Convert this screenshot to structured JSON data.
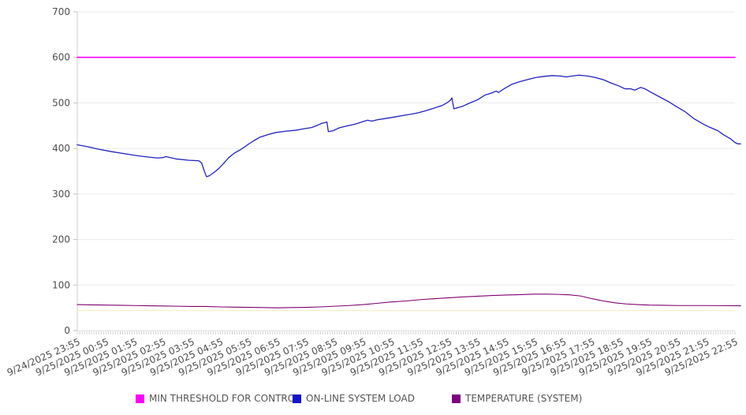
{
  "chart_data": {
    "type": "line",
    "title": "",
    "xlabel": "",
    "ylabel": "",
    "ylim": [
      0,
      700
    ],
    "x_hours_range": [
      0,
      23
    ],
    "grid": "horizontal-only",
    "legend_position": "bottom",
    "y_ticks": [
      0,
      100,
      200,
      300,
      400,
      500,
      600,
      700
    ],
    "x_tick_labels": [
      "9/24/2025 23:55",
      "9/25/2025 00:55",
      "9/25/2025 01:55",
      "9/25/2025 02:55",
      "9/25/2025 03:55",
      "9/25/2025 04:55",
      "9/25/2025 05:55",
      "9/25/2025 06:55",
      "9/25/2025 07:55",
      "9/25/2025 08:55",
      "9/25/2025 09:55",
      "9/25/2025 10:55",
      "9/25/2025 11:55",
      "9/25/2025 12:55",
      "9/25/2025 13:55",
      "9/25/2025 14:55",
      "9/25/2025 15:55",
      "9/25/2025 16:55",
      "9/25/2025 17:55",
      "9/25/2025 18:55",
      "9/25/2025 19:55",
      "9/25/2025 20:55",
      "9/25/2025 21:55",
      "9/25/2025 22:55"
    ],
    "x_minor_ticks_per_hour": 12,
    "series": [
      {
        "name": "unlabeled-faint-threshold",
        "color": "#f3f0c8",
        "width": 1.2,
        "in_legend": false,
        "points": [
          [
            0,
            44
          ],
          [
            23,
            44
          ]
        ]
      },
      {
        "name": "TEMPERATURE (SYSTEM)",
        "color": "#800070",
        "width": 1.1,
        "in_legend": true,
        "points": [
          [
            0,
            57
          ],
          [
            0.5,
            56.5
          ],
          [
            1,
            56
          ],
          [
            1.5,
            55.5
          ],
          [
            2,
            55
          ],
          [
            2.5,
            54.5
          ],
          [
            3,
            54
          ],
          [
            3.5,
            53.5
          ],
          [
            4,
            53
          ],
          [
            4.5,
            53
          ],
          [
            5,
            52
          ],
          [
            5.5,
            51.5
          ],
          [
            6,
            51
          ],
          [
            6.5,
            50.5
          ],
          [
            7,
            50
          ],
          [
            7.5,
            50.5
          ],
          [
            8,
            51
          ],
          [
            8.5,
            52
          ],
          [
            9,
            53.5
          ],
          [
            9.5,
            55
          ],
          [
            10,
            57
          ],
          [
            10.5,
            60
          ],
          [
            11,
            63
          ],
          [
            11.5,
            65
          ],
          [
            12,
            68
          ],
          [
            12.5,
            70
          ],
          [
            13,
            72
          ],
          [
            13.5,
            74
          ],
          [
            14,
            75.5
          ],
          [
            14.5,
            77
          ],
          [
            15,
            78
          ],
          [
            15.5,
            79
          ],
          [
            16,
            80
          ],
          [
            16.4,
            80
          ],
          [
            16.8,
            79.5
          ],
          [
            17.2,
            78.5
          ],
          [
            17.6,
            76
          ],
          [
            18,
            70
          ],
          [
            18.4,
            65
          ],
          [
            18.8,
            61
          ],
          [
            19.2,
            58.5
          ],
          [
            19.6,
            57
          ],
          [
            20,
            56
          ],
          [
            20.5,
            55.5
          ],
          [
            21,
            55
          ],
          [
            21.5,
            55
          ],
          [
            22,
            55
          ],
          [
            22.5,
            54.8
          ],
          [
            23.2,
            54.5
          ]
        ]
      },
      {
        "name": "ON-LINE SYSTEM LOAD",
        "color": "#2222c0",
        "width": 1.3,
        "in_legend": true,
        "points": [
          [
            0,
            408
          ],
          [
            0.35,
            404
          ],
          [
            0.7,
            399
          ],
          [
            1.2,
            393
          ],
          [
            1.6,
            389
          ],
          [
            2.1,
            384
          ],
          [
            2.5,
            381
          ],
          [
            2.8,
            379
          ],
          [
            3.0,
            380
          ],
          [
            3.1,
            382
          ],
          [
            3.45,
            377
          ],
          [
            3.9,
            374
          ],
          [
            4.25,
            373
          ],
          [
            4.35,
            368
          ],
          [
            4.45,
            349
          ],
          [
            4.52,
            338
          ],
          [
            4.62,
            340
          ],
          [
            4.8,
            348
          ],
          [
            4.95,
            356
          ],
          [
            5.1,
            366
          ],
          [
            5.3,
            380
          ],
          [
            5.5,
            390
          ],
          [
            5.7,
            397
          ],
          [
            5.85,
            403
          ],
          [
            6.0,
            410
          ],
          [
            6.2,
            418
          ],
          [
            6.4,
            425
          ],
          [
            6.7,
            431
          ],
          [
            6.95,
            435
          ],
          [
            7.3,
            438
          ],
          [
            7.65,
            440
          ],
          [
            7.9,
            443
          ],
          [
            8.2,
            446
          ],
          [
            8.4,
            451
          ],
          [
            8.55,
            455
          ],
          [
            8.68,
            457
          ],
          [
            8.73,
            458
          ],
          [
            8.78,
            437
          ],
          [
            8.95,
            439
          ],
          [
            9.15,
            445
          ],
          [
            9.4,
            449
          ],
          [
            9.7,
            453
          ],
          [
            9.95,
            458
          ],
          [
            10.15,
            462
          ],
          [
            10.3,
            460
          ],
          [
            10.5,
            463
          ],
          [
            10.8,
            466
          ],
          [
            11.1,
            469
          ],
          [
            11.35,
            472
          ],
          [
            11.65,
            475
          ],
          [
            11.9,
            478
          ],
          [
            12.2,
            483
          ],
          [
            12.45,
            488
          ],
          [
            12.75,
            494
          ],
          [
            12.95,
            501
          ],
          [
            13.05,
            506
          ],
          [
            13.1,
            511
          ],
          [
            13.17,
            487
          ],
          [
            13.45,
            492
          ],
          [
            13.7,
            499
          ],
          [
            14.0,
            507
          ],
          [
            14.25,
            517
          ],
          [
            14.5,
            522
          ],
          [
            14.65,
            526
          ],
          [
            14.73,
            523
          ],
          [
            14.95,
            532
          ],
          [
            15.2,
            541
          ],
          [
            15.5,
            547
          ],
          [
            15.8,
            552
          ],
          [
            16.05,
            556
          ],
          [
            16.3,
            558
          ],
          [
            16.6,
            560
          ],
          [
            16.9,
            559
          ],
          [
            17.1,
            557
          ],
          [
            17.3,
            559
          ],
          [
            17.55,
            561
          ],
          [
            17.85,
            559
          ],
          [
            18.1,
            556
          ],
          [
            18.4,
            551
          ],
          [
            18.65,
            544
          ],
          [
            18.95,
            537
          ],
          [
            19.15,
            531
          ],
          [
            19.35,
            531
          ],
          [
            19.5,
            528
          ],
          [
            19.7,
            534
          ],
          [
            19.85,
            531
          ],
          [
            20.1,
            522
          ],
          [
            20.4,
            512
          ],
          [
            20.7,
            502
          ],
          [
            20.95,
            492
          ],
          [
            21.25,
            481
          ],
          [
            21.55,
            466
          ],
          [
            21.85,
            455
          ],
          [
            22.1,
            447
          ],
          [
            22.4,
            439
          ],
          [
            22.6,
            430
          ],
          [
            22.85,
            421
          ],
          [
            23.0,
            413
          ],
          [
            23.1,
            410
          ],
          [
            23.2,
            410
          ]
        ]
      },
      {
        "name": "MIN THRESHOLD FOR CONTROL",
        "color": "#ff00ff",
        "width": 1.6,
        "in_legend": true,
        "points": [
          [
            0,
            600
          ],
          [
            23,
            600
          ]
        ]
      }
    ]
  },
  "legend": {
    "items": [
      {
        "label": "MIN THRESHOLD FOR CONTROL",
        "color": "#ff00ff"
      },
      {
        "label": "ON-LINE SYSTEM LOAD",
        "color": "#1414cc"
      },
      {
        "label": "TEMPERATURE (SYSTEM)",
        "color": "#800080"
      }
    ]
  }
}
